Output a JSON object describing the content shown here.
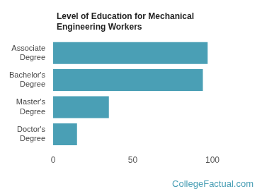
{
  "chart_data": {
    "type": "bar",
    "orientation": "horizontal",
    "title": "Level of Education for Mechanical Engineering Workers",
    "categories": [
      "Associate Degree",
      "Bachelor's Degree",
      "Master's Degree",
      "Doctor's Degree"
    ],
    "values": [
      97,
      94,
      35,
      15
    ],
    "color": "#4a9fb5",
    "xlim": [
      0,
      100
    ],
    "xticks": [
      0,
      50,
      100
    ],
    "grid": false,
    "annotation": "CollegeFactual.com"
  }
}
